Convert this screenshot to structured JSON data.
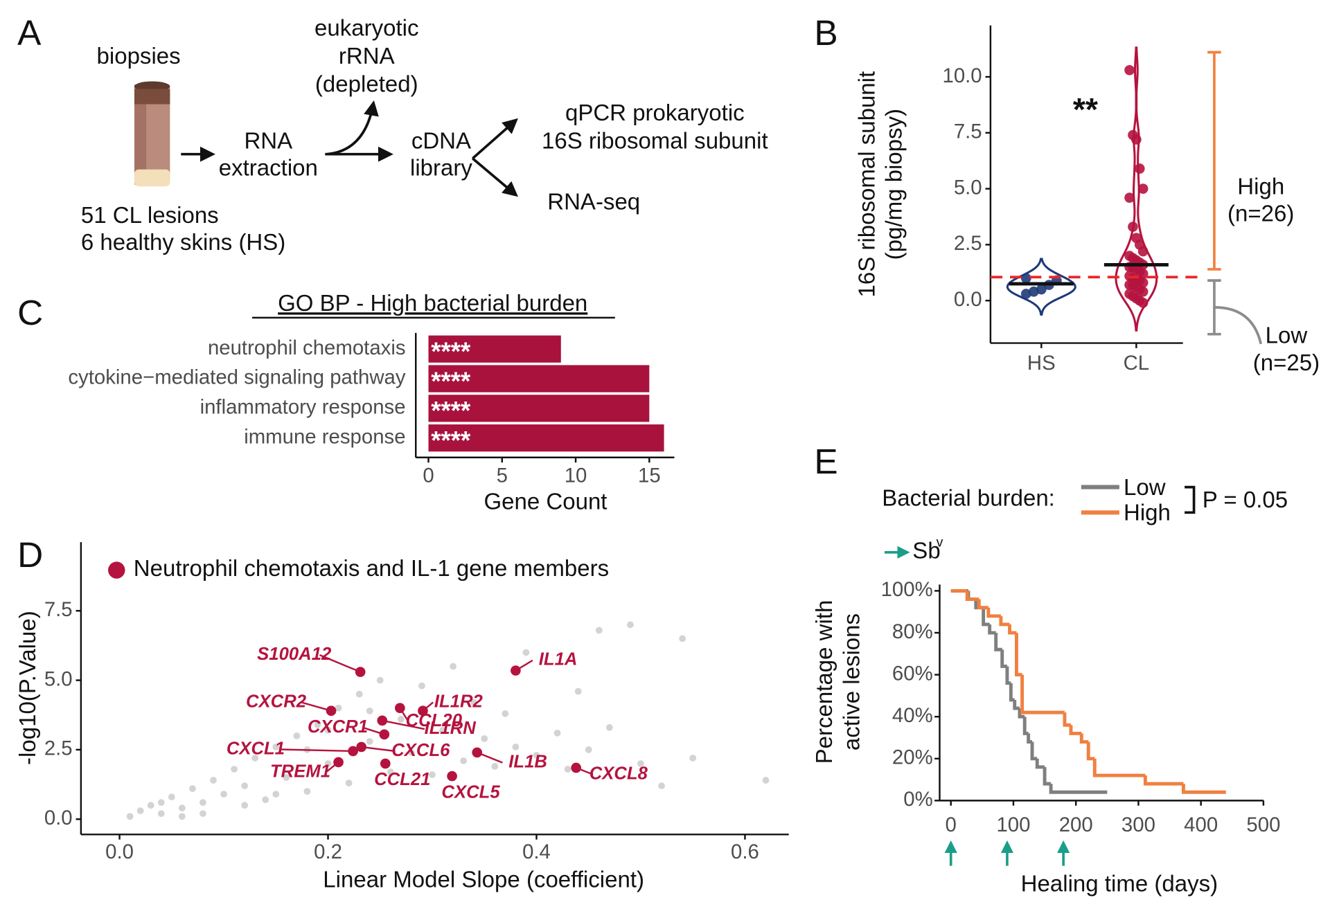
{
  "panel_labels": [
    "A",
    "B",
    "C",
    "D",
    "E"
  ],
  "diagram": {
    "sample": "biopsies",
    "step1": [
      "RNA",
      "extraction"
    ],
    "side": [
      "eukaryotic",
      "rRNA",
      "(depleted)"
    ],
    "step2": [
      "cDNA",
      "library"
    ],
    "out1": [
      "qPCR prokaryotic",
      "16S ribosomal subunit"
    ],
    "out2": "RNA-seq",
    "cohort": [
      "51 CL lesions",
      "6 healthy skins (HS)"
    ]
  },
  "chart_data": [
    {
      "type": "violin",
      "ylabel": [
        "16S ribosomal subunit",
        "(pg/mg biopsy)"
      ],
      "categories": [
        "HS",
        "CL"
      ],
      "colors": [
        "#1f3a78",
        "#b5133f"
      ],
      "points": [
        [
          0.3,
          0.4,
          0.5,
          0.7,
          0.9,
          1.0
        ],
        [
          10.3,
          7.4,
          7.2,
          5.9,
          5.0,
          4.6,
          3.3,
          2.8,
          2.5,
          2.2,
          2.0,
          1.9,
          1.8,
          1.7,
          1.6,
          1.5,
          1.5,
          1.4,
          1.3,
          1.2,
          1.1,
          1.0,
          0.9,
          0.9,
          0.8,
          0.7,
          0.7,
          0.6,
          0.5,
          0.4,
          0.3,
          0.2,
          0.1,
          0.0,
          -0.1
        ]
      ],
      "means": [
        0.75,
        1.6
      ],
      "threshold": 1.05,
      "threshold_color": "#e8272a",
      "significance": "**",
      "ylim": [
        -1.9,
        12.3
      ],
      "yticks": [
        {
          "value": 0,
          "label": "0.0"
        },
        {
          "value": 2.5,
          "label": "2.5"
        },
        {
          "value": 5,
          "label": "5.0"
        },
        {
          "value": 7.5,
          "label": "7.5"
        },
        {
          "value": 10,
          "label": "10.0"
        }
      ],
      "groups": [
        {
          "label": [
            "High",
            "(n=26)"
          ],
          "range": [
            1.4,
            11.1
          ],
          "color": "#f08040"
        },
        {
          "label": [
            "Low",
            "(n=25)"
          ],
          "range": [
            -1.5,
            0.9
          ],
          "color": "#8c8c8c"
        }
      ]
    },
    {
      "type": "hbar",
      "title": "GO BP - High bacterial burden",
      "xlabel": "Gene Count",
      "categories": [
        "neutrophil chemotaxis",
        "cytokine−mediated signaling pathway",
        "inflammatory response",
        "immune response"
      ],
      "values": [
        9,
        15,
        15,
        16
      ],
      "value_labels": [
        "****",
        "****",
        "****",
        "****"
      ],
      "color": "#a8123c",
      "xlim": [
        -0.86,
        16.7
      ],
      "xticks": [
        0,
        5,
        10,
        15
      ]
    },
    {
      "type": "scatter",
      "xlabel": "Linear Model Slope (coefficient)",
      "ylabel": "-log10(P.Value)",
      "legend": "Neutrophil chemotaxis and IL-1 gene members",
      "xlim": [
        -0.037,
        0.642
      ],
      "ylim": [
        -0.55,
        9.97
      ],
      "xticks": [
        {
          "value": 0,
          "label": "0.0"
        },
        {
          "value": 0.2,
          "label": "0.2"
        },
        {
          "value": 0.4,
          "label": "0.4"
        },
        {
          "value": 0.6,
          "label": "0.6"
        }
      ],
      "yticks": [
        {
          "value": 0,
          "label": "0.0"
        },
        {
          "value": 2.5,
          "label": "2.5"
        },
        {
          "value": 5,
          "label": "5.0"
        },
        {
          "value": 7.5,
          "label": "7.5"
        }
      ],
      "series": [
        {
          "color": "#c8c8c8",
          "x": [
            0.01,
            0.02,
            0.03,
            0.04,
            0.05,
            0.06,
            0.07,
            0.08,
            0.09,
            0.1,
            0.11,
            0.12,
            0.13,
            0.14,
            0.15,
            0.16,
            0.17,
            0.18,
            0.19,
            0.2,
            0.21,
            0.22,
            0.23,
            0.24,
            0.25,
            0.26,
            0.27,
            0.28,
            0.29,
            0.3,
            0.31,
            0.32,
            0.33,
            0.34,
            0.35,
            0.36,
            0.37,
            0.38,
            0.39,
            0.4,
            0.42,
            0.43,
            0.44,
            0.45,
            0.46,
            0.47,
            0.49,
            0.5,
            0.52,
            0.54,
            0.55,
            0.62,
            0.08,
            0.12,
            0.15,
            0.18,
            0.2,
            0.24,
            0.04,
            0.06
          ],
          "y": [
            0.1,
            0.3,
            0.5,
            0.2,
            0.8,
            0.4,
            1.1,
            0.6,
            1.4,
            0.9,
            1.8,
            1.2,
            2.2,
            0.7,
            2.6,
            1.5,
            3.0,
            1.0,
            3.4,
            2.0,
            4.0,
            1.3,
            4.5,
            2.8,
            5.0,
            1.7,
            3.6,
            2.4,
            4.8,
            1.6,
            3.2,
            5.5,
            2.1,
            4.2,
            2.9,
            1.9,
            3.8,
            2.6,
            6.0,
            2.3,
            3.1,
            1.8,
            4.6,
            2.5,
            6.8,
            3.3,
            7.0,
            2.0,
            1.2,
            6.5,
            2.2,
            1.4,
            0.2,
            0.5,
            0.9,
            2.5,
            3.2,
            3.9,
            0.6,
            0.1
          ]
        },
        {
          "color": "#b5133f",
          "names": [
            "S100A12",
            "CCL20",
            "IL1A",
            "CXCR2",
            "IL1R2",
            "IL1RN",
            "CXCR1",
            "CXCL1",
            "CXCL6",
            "IL1B",
            "TREM1",
            "CCL21",
            "CXCL5",
            "CXCL8"
          ],
          "x": [
            0.231,
            0.269,
            0.38,
            0.203,
            0.291,
            0.252,
            0.254,
            0.224,
            0.232,
            0.343,
            0.21,
            0.255,
            0.319,
            0.438
          ],
          "y": [
            5.3,
            4.0,
            5.35,
            3.9,
            3.9,
            3.55,
            3.05,
            2.45,
            2.6,
            2.4,
            2.05,
            2.0,
            1.55,
            1.85
          ]
        }
      ]
    },
    {
      "type": "survival",
      "xlabel": "Healing time (days)",
      "ylabel": [
        "Percentage with",
        "active lesions"
      ],
      "legend_title": "Bacterial burden:",
      "p_value": "P = 0.05",
      "treatment_label": "Sb",
      "treatment_superscript": "v",
      "treatment_color": "#1a9e8a",
      "treatment_days": [
        0,
        90,
        180
      ],
      "xlim": [
        -18,
        500
      ],
      "ylim": [
        0,
        103
      ],
      "xticks": [
        0,
        100,
        200,
        300,
        400,
        500
      ],
      "yticks": [
        {
          "value": 0,
          "label": "0%"
        },
        {
          "value": 20,
          "label": "20%"
        },
        {
          "value": 40,
          "label": "40%"
        },
        {
          "value": 60,
          "label": "60%"
        },
        {
          "value": 80,
          "label": "80%"
        },
        {
          "value": 100,
          "label": "100%"
        }
      ],
      "series": [
        {
          "name": "Low",
          "color": "#7f7f7f",
          "x": [
            0,
            28,
            40,
            52,
            62,
            72,
            82,
            90,
            96,
            102,
            110,
            118,
            124,
            130,
            138,
            150,
            160,
            250
          ],
          "y": [
            100,
            96,
            92,
            84,
            80,
            72,
            64,
            56,
            48,
            44,
            40,
            32,
            28,
            20,
            16,
            8,
            4,
            4
          ]
        },
        {
          "name": "High",
          "color": "#f08040",
          "x": [
            0,
            26,
            45,
            60,
            80,
            94,
            105,
            114,
            182,
            192,
            209,
            220,
            230,
            311,
            372,
            440
          ],
          "y": [
            100,
            96,
            92,
            88,
            84,
            80,
            60,
            42,
            36,
            32,
            28,
            20,
            12,
            8,
            4,
            4
          ]
        }
      ]
    }
  ]
}
